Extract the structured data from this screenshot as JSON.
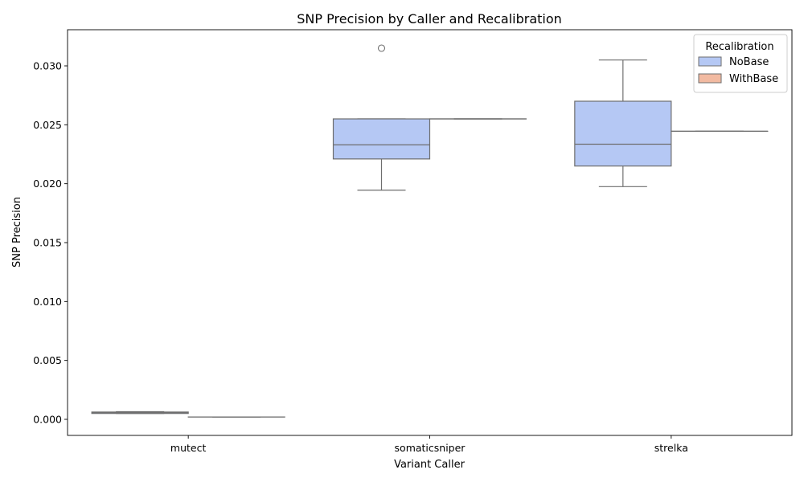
{
  "chart_data": {
    "type": "box",
    "title": "SNP Precision by Caller and Recalibration",
    "xlabel": "Variant Caller",
    "ylabel": "SNP Precision",
    "categories": [
      "mutect",
      "somaticsniper",
      "strelka"
    ],
    "ylim": [
      -0.0014,
      0.033
    ],
    "yticks": [
      "0.000",
      "0.005",
      "0.010",
      "0.015",
      "0.020",
      "0.025",
      "0.030"
    ],
    "grid": false,
    "legend": {
      "title": "Recalibration",
      "position": "top-right",
      "entries": [
        "NoBase",
        "WithBase"
      ]
    },
    "series": [
      {
        "name": "NoBase",
        "color": "#b5c8f4",
        "boxes": [
          {
            "category": "mutect",
            "whisker_low": 0.0005,
            "q1": 0.0005,
            "median": 0.00058,
            "q3": 0.00062,
            "whisker_high": 0.00065,
            "outliers": []
          },
          {
            "category": "somaticsniper",
            "whisker_low": 0.01945,
            "q1": 0.0221,
            "median": 0.0233,
            "q3": 0.0255,
            "whisker_high": 0.0255,
            "outliers": [
              0.0315
            ]
          },
          {
            "category": "strelka",
            "whisker_low": 0.01975,
            "q1": 0.0215,
            "median": 0.02335,
            "q3": 0.027,
            "whisker_high": 0.0305,
            "outliers": []
          }
        ]
      },
      {
        "name": "WithBase",
        "color": "#f2baa1",
        "boxes": [
          {
            "category": "mutect",
            "whisker_low": 0.0002,
            "q1": 0.0002,
            "median": 0.0002,
            "q3": 0.0002,
            "whisker_high": 0.0002,
            "outliers": []
          },
          {
            "category": "somaticsniper",
            "whisker_low": 0.0255,
            "q1": 0.0255,
            "median": 0.0255,
            "q3": 0.0255,
            "whisker_high": 0.0255,
            "outliers": []
          },
          {
            "category": "strelka",
            "whisker_low": 0.02445,
            "q1": 0.02445,
            "median": 0.02445,
            "q3": 0.02445,
            "whisker_high": 0.02445,
            "outliers": []
          }
        ]
      }
    ],
    "line_color": "#6e6e6e"
  }
}
